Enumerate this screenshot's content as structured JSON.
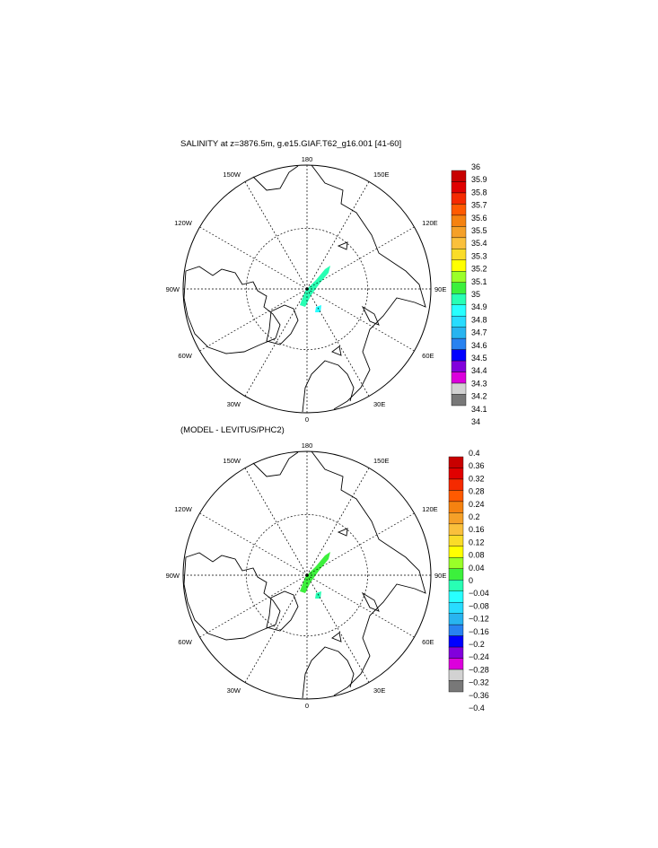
{
  "panels": [
    {
      "title": "SALINITY at z=3876.5m, g.e15.GIAF.T62_g16.001 [41-60]",
      "lon_labels": {
        "top": "180",
        "bottom": "0",
        "left": "90W",
        "right": "90E",
        "ul1": "150W",
        "ul2": "120W",
        "ur1": "150E",
        "ur2": "120E",
        "ll1": "60W",
        "ll2": "30W",
        "lr1": "60E",
        "lr2": "30E"
      },
      "colorbar": {
        "labels": [
          "36",
          "35.9",
          "35.8",
          "35.7",
          "35.6",
          "35.5",
          "35.4",
          "35.3",
          "35.2",
          "35.1",
          "35",
          "34.9",
          "34.8",
          "34.7",
          "34.6",
          "34.5",
          "34.4",
          "34.3",
          "34.2",
          "34.1",
          "34"
        ],
        "colors": [
          "#c80000",
          "#e00000",
          "#f52a00",
          "#ff5a00",
          "#f58210",
          "#f5a028",
          "#fac03c",
          "#fadc28",
          "#ffff00",
          "#9aff28",
          "#3cf03c",
          "#28ffb4",
          "#28ffff",
          "#28dcff",
          "#28b4f0",
          "#2882f0",
          "#0000ff",
          "#8200dc",
          "#dc00dc",
          "#d2d2d2",
          "#787878"
        ]
      },
      "field_color": "#28ffb4",
      "field_color2": "#28ffff"
    },
    {
      "title": "(MODEL - LEVITUS/PHC2)",
      "lon_labels": {
        "top": "180",
        "bottom": "0",
        "left": "90W",
        "right": "90E",
        "ul1": "150W",
        "ul2": "120W",
        "ur1": "150E",
        "ur2": "120E",
        "ll1": "60W",
        "ll2": "30W",
        "lr1": "60E",
        "lr2": "30E"
      },
      "colorbar": {
        "labels": [
          "0.4",
          "0.36",
          "0.32",
          "0.28",
          "0.24",
          "0.2",
          "0.16",
          "0.12",
          "0.08",
          "0.04",
          "0",
          "−0.04",
          "−0.08",
          "−0.12",
          "−0.16",
          "−0.2",
          "−0.24",
          "−0.28",
          "−0.32",
          "−0.36",
          "−0.4"
        ],
        "colors": [
          "#c80000",
          "#e00000",
          "#f52a00",
          "#ff5a00",
          "#f58210",
          "#f5a028",
          "#fac03c",
          "#fadc28",
          "#ffff00",
          "#9aff28",
          "#3cf03c",
          "#28ffb4",
          "#28ffff",
          "#28dcff",
          "#28b4f0",
          "#2882f0",
          "#0000ff",
          "#8200dc",
          "#dc00dc",
          "#d2d2d2",
          "#787878"
        ]
      },
      "field_color": "#3cf03c",
      "field_color2": "#28ffb4"
    }
  ]
}
